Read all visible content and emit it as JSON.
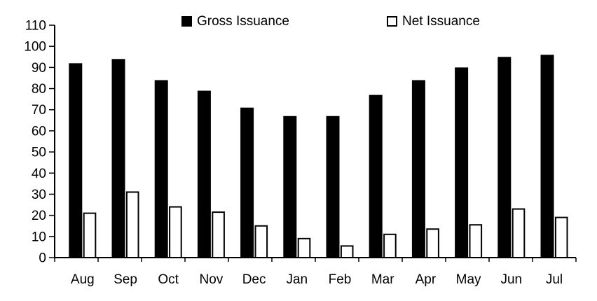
{
  "colors": {
    "background": "#ffffff",
    "axis": "#000000",
    "text": "#000000",
    "gross_bar_fill": "#000000",
    "net_bar_fill": "#ffffff",
    "net_bar_border": "#000000"
  },
  "legend": {
    "gross_label": "Gross Issuance",
    "net_label": "Net Issuance"
  },
  "chart_data": {
    "type": "bar",
    "title": "",
    "xlabel": "",
    "ylabel": "",
    "categories": [
      "Aug",
      "Sep",
      "Oct",
      "Nov",
      "Dec",
      "Jan",
      "Feb",
      "Mar",
      "Apr",
      "May",
      "Jun",
      "Jul"
    ],
    "series": [
      {
        "name": "Gross Issuance",
        "style": "filled",
        "color": "#000000",
        "values": [
          92,
          94,
          84,
          79,
          71,
          67,
          67,
          77,
          84,
          90,
          95,
          96
        ]
      },
      {
        "name": "Net Issuance",
        "style": "outlined",
        "color": "#ffffff",
        "border_color": "#000000",
        "values": [
          21,
          31,
          24,
          21.5,
          15,
          9,
          5.5,
          11,
          13.5,
          15.5,
          23,
          19
        ]
      }
    ],
    "ylim": [
      0,
      110
    ],
    "ytick_step": 10,
    "yticks": [
      0,
      10,
      20,
      30,
      40,
      50,
      60,
      70,
      80,
      90,
      100,
      110
    ],
    "grid": false,
    "legend_position": "top"
  }
}
